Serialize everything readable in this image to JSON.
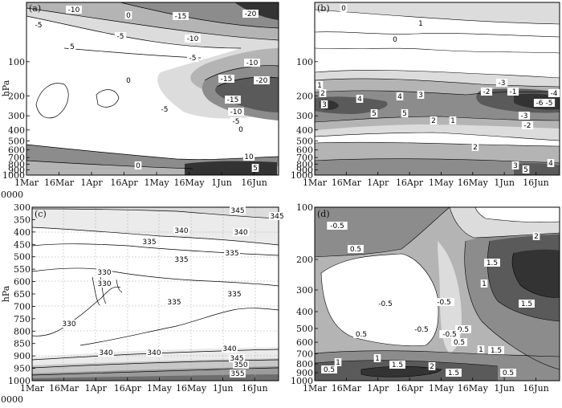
{
  "figure": {
    "ylabel": "hPa",
    "x_first_sub": "0000"
  },
  "chart_data": [
    {
      "type": "heatmap",
      "panel": "(a)",
      "ylabel": "hPa",
      "x_ticks": [
        "1Mar",
        "16Mar",
        "1Apr",
        "16Apr",
        "1May",
        "16May",
        "1Jun",
        "16Jun"
      ],
      "y_ticks": [
        "100",
        "200",
        "300",
        "400",
        "500",
        "600",
        "700",
        "800",
        "900",
        "1000"
      ],
      "y_scale": "log",
      "contour_labels": [
        "-10",
        "-5",
        "0",
        "-15",
        "-5",
        "-10",
        "-20",
        "-5",
        "-10",
        "-15",
        "-20",
        "-15",
        "-10",
        "-5",
        "0",
        "-5",
        "0",
        "5",
        "10",
        "5",
        "0"
      ],
      "grid": false
    },
    {
      "type": "heatmap",
      "panel": "(b)",
      "x_ticks": [
        "1Mar",
        "16Mar",
        "1Apr",
        "16Apr",
        "1May",
        "16May",
        "1Jun",
        "16Jun"
      ],
      "y_ticks": [
        "100",
        "200",
        "300",
        "400",
        "500",
        "600",
        "700",
        "800",
        "900",
        "1000"
      ],
      "y_scale": "log",
      "contour_labels": [
        "0",
        "1",
        "0",
        "-1",
        "-2",
        "-3",
        "-4",
        "-5",
        "-6",
        "-3",
        "-2",
        "1",
        "2",
        "3",
        "4",
        "5",
        "4",
        "5",
        "3",
        "2",
        "1",
        "2",
        "4",
        "3",
        "5"
      ],
      "grid": false
    },
    {
      "type": "heatmap",
      "panel": "(c)",
      "ylabel": "hPa",
      "x_ticks": [
        "1Mar",
        "16Mar",
        "1Apr",
        "16Apr",
        "1May",
        "16May",
        "1Jun",
        "16Jun"
      ],
      "y_ticks": [
        "300",
        "350",
        "400",
        "450",
        "500",
        "550",
        "600",
        "650",
        "700",
        "750",
        "800",
        "850",
        "900",
        "950",
        "1000"
      ],
      "y_scale": "linear",
      "contour_labels": [
        "345",
        "345",
        "340",
        "340",
        "335",
        "335",
        "335",
        "330",
        "330",
        "330",
        "335",
        "335",
        "340",
        "340",
        "340",
        "345",
        "350",
        "355"
      ],
      "grid": true
    },
    {
      "type": "heatmap",
      "panel": "(d)",
      "x_ticks": [
        "1Mar",
        "16Mar",
        "1Apr",
        "16Apr",
        "1May",
        "16May",
        "1Jun",
        "16Jun"
      ],
      "y_ticks": [
        "100",
        "200",
        "300",
        "400",
        "500",
        "600",
        "700",
        "800",
        "900",
        "1000"
      ],
      "y_scale": "log",
      "contour_labels": [
        "-0.5",
        "0.5",
        "1",
        "1.5",
        "2",
        "1.5",
        "0.5",
        "-0.5",
        "-0.5",
        "-0.5",
        "-0.5",
        "0.5",
        "1",
        "1.5",
        "2",
        "0.5",
        "1",
        "1.5",
        "0.5",
        "1.5",
        "0.5",
        "1"
      ],
      "grid": false
    }
  ]
}
